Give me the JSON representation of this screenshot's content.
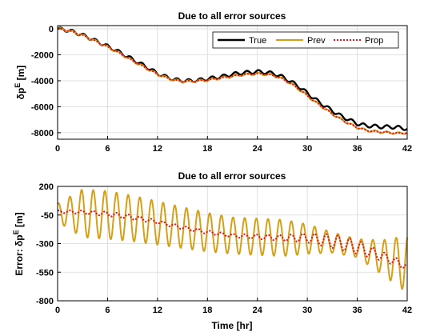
{
  "chart_data": [
    {
      "type": "line",
      "title": "Due to all error sources",
      "xlabel": "",
      "ylabel": "δp^E [m]",
      "xlim": [
        0,
        42
      ],
      "ylim": [
        -8500,
        250
      ],
      "xticks": [
        0,
        6,
        12,
        18,
        24,
        30,
        36,
        42
      ],
      "yticks": [
        0,
        -2000,
        -4000,
        -6000,
        -8000
      ],
      "xtick_labels": [
        "0",
        "6",
        "12",
        "18",
        "24",
        "30",
        "36",
        "42"
      ],
      "ytick_labels": [
        "0",
        "-2000",
        "-4000",
        "-6000",
        "-8000"
      ],
      "grid": true,
      "legend": "top-right",
      "x": [
        0,
        1,
        2,
        3,
        4,
        5,
        6,
        7,
        8,
        9,
        10,
        11,
        12,
        13,
        14,
        15,
        16,
        17,
        18,
        19,
        20,
        21,
        22,
        23,
        24,
        25,
        26,
        27,
        28,
        29,
        30,
        31,
        32,
        33,
        34,
        35,
        36,
        37,
        38,
        39,
        40,
        41,
        42
      ],
      "series": [
        {
          "name": "True",
          "color": "#000000",
          "dash": "",
          "width": 2.4,
          "values": [
            0,
            -80,
            -250,
            -480,
            -750,
            -1050,
            -1350,
            -1650,
            -2000,
            -2350,
            -2700,
            -3050,
            -3450,
            -3700,
            -3900,
            -4000,
            -4000,
            -3950,
            -3850,
            -3750,
            -3650,
            -3500,
            -3400,
            -3350,
            -3300,
            -3350,
            -3450,
            -3700,
            -4050,
            -4450,
            -4950,
            -5450,
            -5900,
            -6300,
            -6700,
            -7000,
            -7300,
            -7450,
            -7500,
            -7550,
            -7550,
            -7600,
            -7700
          ]
        },
        {
          "name": "Prev",
          "color": "#d4a017",
          "dash": "",
          "width": 2,
          "values": [
            0,
            -90,
            -270,
            -500,
            -780,
            -1080,
            -1400,
            -1720,
            -2080,
            -2450,
            -2800,
            -3150,
            -3500,
            -3750,
            -3950,
            -4050,
            -4050,
            -4000,
            -3950,
            -3850,
            -3750,
            -3650,
            -3550,
            -3500,
            -3450,
            -3500,
            -3600,
            -3850,
            -4200,
            -4650,
            -5150,
            -5650,
            -6100,
            -6550,
            -6950,
            -7300,
            -7600,
            -7800,
            -7900,
            -7950,
            -8000,
            -8050,
            -8000
          ]
        },
        {
          "name": "Prop",
          "color": "#e8101a",
          "dash": "2 2",
          "width": 2,
          "values": [
            0,
            -90,
            -270,
            -500,
            -780,
            -1080,
            -1400,
            -1720,
            -2080,
            -2450,
            -2800,
            -3150,
            -3500,
            -3750,
            -3950,
            -4050,
            -4050,
            -4000,
            -3950,
            -3850,
            -3750,
            -3650,
            -3550,
            -3500,
            -3450,
            -3500,
            -3600,
            -3850,
            -4200,
            -4650,
            -5150,
            -5650,
            -6100,
            -6550,
            -6950,
            -7300,
            -7600,
            -7800,
            -7900,
            -7950,
            -8000,
            -8050,
            -8000
          ]
        }
      ],
      "oscillation": {
        "True": {
          "period_hr": 1.4,
          "amplitude": 130
        },
        "Prev": {
          "period_hr": 1.4,
          "amplitude": 90
        },
        "Prop": {
          "period_hr": 1.4,
          "amplitude": 40
        }
      }
    },
    {
      "type": "line",
      "title": "Due to all error sources",
      "xlabel": "Time [hr]",
      "ylabel": "Error: δp^E [m]",
      "xlim": [
        0,
        42
      ],
      "ylim": [
        -800,
        200
      ],
      "xticks": [
        0,
        6,
        12,
        18,
        24,
        30,
        36,
        42
      ],
      "yticks": [
        200,
        -50,
        -300,
        -550,
        -800
      ],
      "xtick_labels": [
        "0",
        "6",
        "12",
        "18",
        "24",
        "30",
        "36",
        "42"
      ],
      "ytick_labels": [
        "200",
        "-50",
        "-300",
        "-550",
        "-800"
      ],
      "grid": true,
      "x": [
        0,
        3,
        6,
        9,
        12,
        15,
        18,
        21,
        24,
        27,
        30,
        33,
        36,
        39,
        42
      ],
      "series": [
        {
          "name": "Prev",
          "color": "#d4a017",
          "dash": "",
          "width": 2,
          "center": [
            -30,
            -35,
            -50,
            -80,
            -120,
            -160,
            -200,
            -230,
            -240,
            -250,
            -260,
            -290,
            -340,
            -420,
            -480
          ],
          "amplitude": [
            80,
            210,
            210,
            200,
            190,
            180,
            170,
            160,
            160,
            160,
            130,
            90,
            80,
            150,
            250
          ],
          "period_hr": 1.4
        },
        {
          "name": "Prop",
          "color": "#e8101a",
          "dash": "2 2",
          "width": 2,
          "center": [
            -20,
            -25,
            -40,
            -70,
            -110,
            -160,
            -200,
            -230,
            -240,
            -250,
            -250,
            -280,
            -330,
            -410,
            -500
          ],
          "amplitude": [
            10,
            15,
            20,
            20,
            15,
            15,
            15,
            15,
            20,
            25,
            40,
            60,
            60,
            40,
            30
          ],
          "period_hr": 1.4
        }
      ]
    }
  ]
}
